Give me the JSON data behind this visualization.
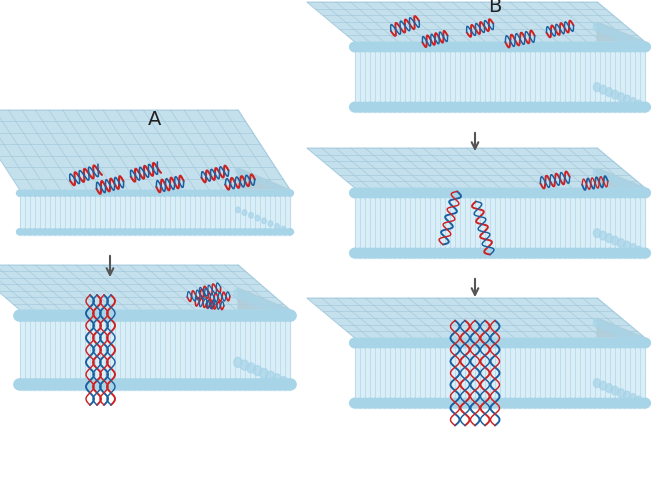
{
  "bg_color": "#ffffff",
  "top_face_color": "#c5e0ed",
  "top_face_grid_color": "#9cc5d8",
  "side_face_color": "#daeef8",
  "lipid_head_color": "#a8d4e8",
  "lipid_tail_color": "#daeef8",
  "lipid_line_color": "#b0d5e8",
  "right_face_color": "#b8d8e8",
  "helix_blue": "#1a5fa0",
  "helix_red": "#cc2222",
  "arrow_color": "#555555",
  "label_color": "#222222",
  "fig_width": 6.68,
  "fig_height": 4.78,
  "dpi": 100
}
